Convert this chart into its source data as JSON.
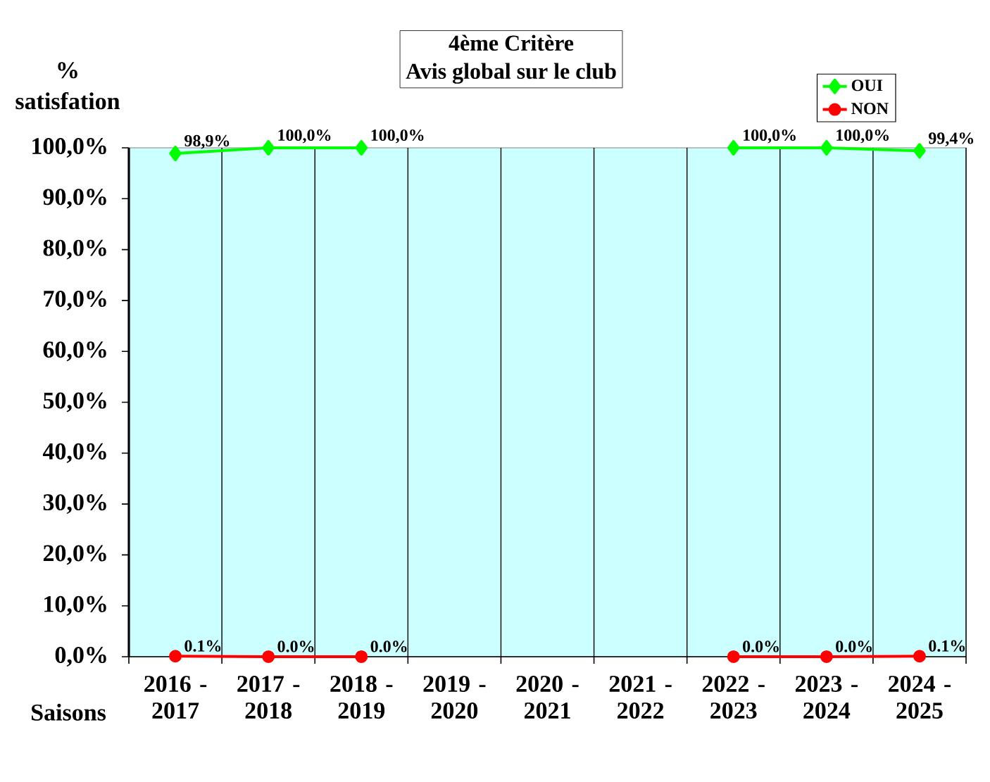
{
  "chart_data": {
    "type": "line",
    "title": "4ème Critère",
    "subtitle": "Avis global sur le club",
    "xlabel": "Saisons",
    "ylabel": "% satisfation",
    "categories": [
      "2016 - 2017",
      "2017 - 2018",
      "2018 - 2019",
      "2019 - 2020",
      "2020 - 2021",
      "2021 - 2022",
      "2022 - 2023",
      "2023 - 2024",
      "2024 - 2025"
    ],
    "series": [
      {
        "name": "OUI",
        "color": "#00ff00",
        "marker": "diamond",
        "values": [
          98.9,
          100,
          100,
          null,
          null,
          null,
          100,
          100,
          99.4
        ],
        "value_labels": [
          "98,9%",
          "100,0%",
          "100,0%",
          null,
          null,
          null,
          "100,0%",
          "100,0%",
          "99,4%"
        ]
      },
      {
        "name": "NON",
        "color": "#ff0000",
        "marker": "circle",
        "values": [
          0.1,
          0,
          0,
          null,
          null,
          null,
          0,
          0,
          0.1
        ],
        "value_labels": [
          "0.1%",
          "0.0%",
          "0.0%",
          null,
          null,
          null,
          "0.0%",
          "0.0%",
          "0.1%"
        ]
      }
    ],
    "ylim": [
      0,
      100
    ],
    "yticks": [
      {
        "value": 0,
        "label": "0,0%"
      },
      {
        "value": 10,
        "label": "10,0%"
      },
      {
        "value": 20,
        "label": "20,0%"
      },
      {
        "value": 30,
        "label": "30,0%"
      },
      {
        "value": 40,
        "label": "40,0%"
      },
      {
        "value": 50,
        "label": "50,0%"
      },
      {
        "value": 60,
        "label": "60,0%"
      },
      {
        "value": 70,
        "label": "70,0%"
      },
      {
        "value": 80,
        "label": "80,0%"
      },
      {
        "value": 90,
        "label": "90,0%"
      },
      {
        "value": 100,
        "label": "100,0%"
      }
    ],
    "grid": "x",
    "legend": "top right",
    "line_style": "solid"
  }
}
